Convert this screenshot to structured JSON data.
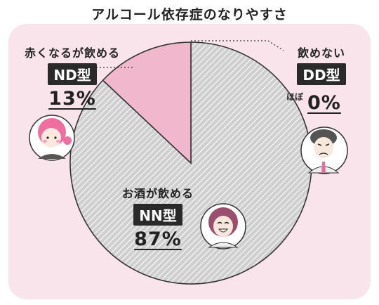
{
  "title": "アルコール依存症のなりやすさ",
  "colors": {
    "nd": "#f1b8cd",
    "nn": "#cfcfcf",
    "panel": "#f9e4ec",
    "stroke": "#333333"
  },
  "labels": {
    "nd": {
      "caption": "赤くなるが飲める",
      "type": "ND型",
      "percent": "13%"
    },
    "dd": {
      "caption": "飲めない",
      "type": "DD型",
      "qualifier": "ほぼ",
      "percent": "0%"
    },
    "nn": {
      "caption": "お酒が飲める",
      "type": "NN型",
      "percent": "87%"
    }
  },
  "chart_data": {
    "type": "pie",
    "title": "アルコール依存症のなりやすさ",
    "slices": [
      {
        "name": "NN型",
        "label": "お酒が飲める",
        "value": 87
      },
      {
        "name": "ND型",
        "label": "赤くなるが飲める",
        "value": 13
      },
      {
        "name": "DD型",
        "label": "飲めない",
        "value": 0
      }
    ]
  },
  "icons": [
    "pink-hair-woman-icon",
    "frowning-man-icon",
    "smiling-woman-icon"
  ]
}
